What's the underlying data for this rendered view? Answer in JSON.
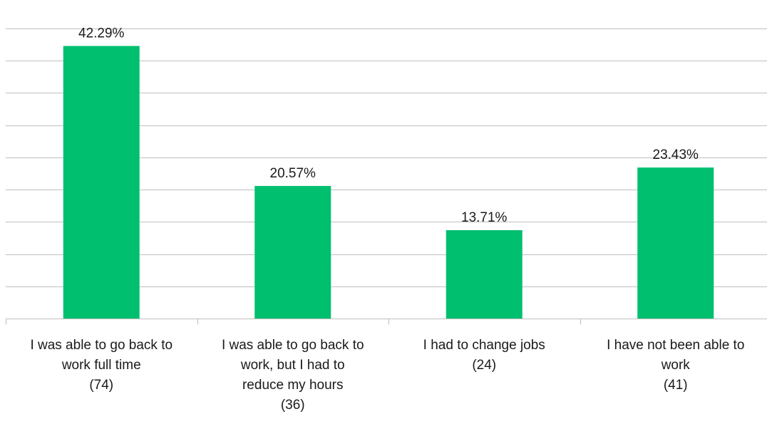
{
  "chart_data": {
    "type": "bar",
    "categories": [
      [
        "I was able to go back to",
        "work full time",
        "(74)"
      ],
      [
        "I was able to go back to",
        "work, but I had to",
        "reduce my hours",
        "(36)"
      ],
      [
        "I had to change jobs",
        "(24)"
      ],
      [
        "I have not been able to",
        "work",
        "(41)"
      ]
    ],
    "values": [
      42.29,
      20.57,
      13.71,
      23.43
    ],
    "data_labels": [
      "42.29%",
      "20.57%",
      "13.71%",
      "23.43%"
    ],
    "ylim": [
      0,
      45
    ],
    "gridlines": [
      0,
      5,
      10,
      15,
      20,
      25,
      30,
      35,
      40,
      45
    ],
    "grid": true,
    "y_tick_labels_visible": false,
    "bar_color": "#00bf6f",
    "grid_color": "#bfbfbf",
    "title": "",
    "xlabel": "",
    "ylabel": ""
  }
}
